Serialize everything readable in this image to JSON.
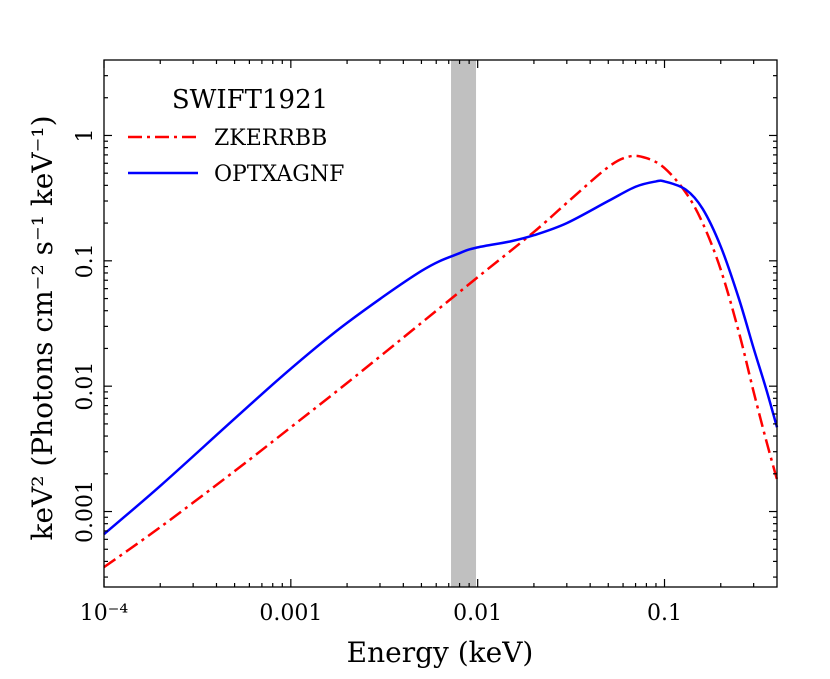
{
  "chart_data": {
    "type": "line",
    "title": "",
    "xlabel": "Energy (keV)",
    "ylabel": "keV² (Photons cm⁻² s⁻¹ keV⁻¹)",
    "xscale": "log",
    "yscale": "log",
    "xlim": [
      0.0001,
      0.4
    ],
    "ylim": [
      0.00025,
      4.0
    ],
    "x_ticks": [
      {
        "value": 0.0001,
        "label": "10⁻⁴"
      },
      {
        "value": 0.001,
        "label": "0.001"
      },
      {
        "value": 0.01,
        "label": "0.01"
      },
      {
        "value": 0.1,
        "label": "0.1"
      }
    ],
    "y_ticks": [
      {
        "value": 0.001,
        "label": "0.001"
      },
      {
        "value": 0.01,
        "label": "0.01"
      },
      {
        "value": 0.1,
        "label": "0.1"
      },
      {
        "value": 1,
        "label": "1"
      }
    ],
    "shaded_band": {
      "x_range": [
        0.0072,
        0.0098
      ],
      "color": "#c0c0c0"
    },
    "legend": {
      "title": "SWIFT1921",
      "location": "upper-left"
    },
    "series": [
      {
        "name": "ZKERRBB",
        "color": "#ff0000",
        "style": "dashdot",
        "points": [
          [
            0.0001,
            0.00036
          ],
          [
            0.0002,
            0.00075
          ],
          [
            0.0005,
            0.0021
          ],
          [
            0.001,
            0.0047
          ],
          [
            0.002,
            0.0106
          ],
          [
            0.005,
            0.032
          ],
          [
            0.01,
            0.074
          ],
          [
            0.02,
            0.17
          ],
          [
            0.03,
            0.29
          ],
          [
            0.05,
            0.56
          ],
          [
            0.065,
            0.68
          ],
          [
            0.08,
            0.66
          ],
          [
            0.1,
            0.55
          ],
          [
            0.13,
            0.35
          ],
          [
            0.16,
            0.2
          ],
          [
            0.2,
            0.085
          ],
          [
            0.25,
            0.027
          ],
          [
            0.3,
            0.009
          ],
          [
            0.35,
            0.0037
          ],
          [
            0.4,
            0.0018
          ]
        ]
      },
      {
        "name": "OPTXAGNF",
        "color": "#0000ff",
        "style": "solid",
        "points": [
          [
            0.0001,
            0.00066
          ],
          [
            0.0002,
            0.0016
          ],
          [
            0.0005,
            0.0055
          ],
          [
            0.001,
            0.0138
          ],
          [
            0.002,
            0.032
          ],
          [
            0.005,
            0.083
          ],
          [
            0.008,
            0.115
          ],
          [
            0.01,
            0.128
          ],
          [
            0.015,
            0.143
          ],
          [
            0.02,
            0.16
          ],
          [
            0.03,
            0.2
          ],
          [
            0.05,
            0.3
          ],
          [
            0.07,
            0.39
          ],
          [
            0.09,
            0.43
          ],
          [
            0.1,
            0.43
          ],
          [
            0.13,
            0.37
          ],
          [
            0.16,
            0.26
          ],
          [
            0.2,
            0.13
          ],
          [
            0.25,
            0.05
          ],
          [
            0.3,
            0.02
          ],
          [
            0.35,
            0.0095
          ],
          [
            0.4,
            0.0047
          ]
        ]
      }
    ]
  }
}
